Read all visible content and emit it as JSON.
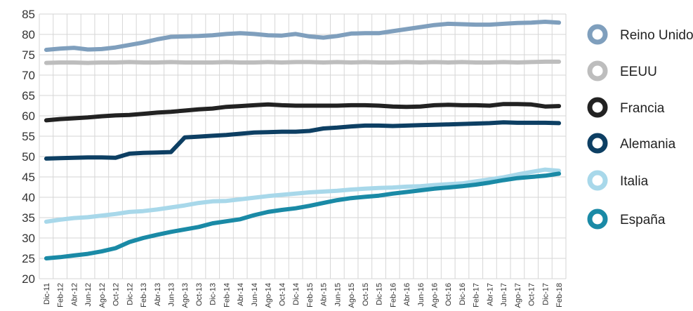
{
  "chart_data": {
    "type": "line",
    "title": "",
    "xlabel": "",
    "ylabel": "",
    "ylim": [
      20,
      85
    ],
    "yticks": [
      20,
      25,
      30,
      35,
      40,
      45,
      50,
      55,
      60,
      65,
      70,
      75,
      80,
      85
    ],
    "grid": true,
    "legend_position": "right",
    "categories": [
      "Dic-11",
      "Feb-12",
      "Abr-12",
      "Jun-12",
      "Ago-12",
      "Oct-12",
      "Dic-12",
      "Feb-13",
      "Abr-13",
      "Jun-13",
      "Ago-13",
      "Oct-13",
      "Dic-13",
      "Feb-14",
      "Abr-14",
      "Jun-14",
      "Ago-14",
      "Oct-14",
      "Dic-14",
      "Feb-15",
      "Abr-15",
      "Jun-15",
      "Ago-15",
      "Oct-15",
      "Dic-15",
      "Feb-16",
      "Abr-16",
      "Jun-16",
      "Ago-16",
      "Oct-16",
      "Dic-16",
      "Feb-17",
      "Abr-17",
      "Jun-17",
      "Ago-17",
      "Oct-17",
      "Dic-17",
      "Feb-18"
    ],
    "series": [
      {
        "name": "Reino Unido",
        "color": "#7f9fbd",
        "values": [
          76.2,
          76.5,
          76.7,
          76.3,
          76.4,
          76.8,
          77.4,
          78.0,
          78.8,
          79.4,
          79.5,
          79.6,
          79.8,
          80.1,
          80.3,
          80.1,
          79.8,
          79.7,
          80.1,
          79.5,
          79.2,
          79.6,
          80.2,
          80.3,
          80.3,
          80.8,
          81.3,
          81.8,
          82.3,
          82.6,
          82.5,
          82.4,
          82.4,
          82.6,
          82.8,
          82.9,
          83.1,
          82.9
        ]
      },
      {
        "name": "EEUU",
        "color": "#bdbdbd",
        "values": [
          73.0,
          73.1,
          73.1,
          73.0,
          73.1,
          73.1,
          73.2,
          73.1,
          73.1,
          73.2,
          73.1,
          73.1,
          73.1,
          73.2,
          73.1,
          73.1,
          73.2,
          73.1,
          73.2,
          73.2,
          73.1,
          73.2,
          73.1,
          73.2,
          73.1,
          73.1,
          73.2,
          73.1,
          73.2,
          73.1,
          73.2,
          73.1,
          73.1,
          73.2,
          73.1,
          73.2,
          73.3,
          73.3
        ]
      },
      {
        "name": "Francia",
        "color": "#222222",
        "values": [
          58.9,
          59.2,
          59.4,
          59.6,
          59.9,
          60.1,
          60.2,
          60.5,
          60.8,
          61.0,
          61.3,
          61.6,
          61.8,
          62.2,
          62.4,
          62.6,
          62.8,
          62.6,
          62.5,
          62.5,
          62.5,
          62.5,
          62.6,
          62.6,
          62.5,
          62.3,
          62.2,
          62.3,
          62.6,
          62.7,
          62.6,
          62.6,
          62.5,
          62.9,
          62.9,
          62.8,
          62.3,
          62.4
        ]
      },
      {
        "name": "Alemania",
        "color": "#0d3f63",
        "values": [
          49.5,
          49.6,
          49.7,
          49.8,
          49.8,
          49.7,
          50.7,
          50.9,
          51.0,
          51.1,
          54.7,
          54.9,
          55.1,
          55.3,
          55.6,
          55.9,
          56.0,
          56.1,
          56.1,
          56.3,
          56.9,
          57.1,
          57.4,
          57.6,
          57.6,
          57.5,
          57.6,
          57.7,
          57.8,
          57.9,
          58.0,
          58.1,
          58.2,
          58.4,
          58.3,
          58.3,
          58.3,
          58.2
        ]
      },
      {
        "name": "Italia",
        "color": "#a8d8ea",
        "values": [
          34.0,
          34.5,
          34.9,
          35.1,
          35.5,
          35.9,
          36.4,
          36.6,
          37.0,
          37.5,
          38.0,
          38.6,
          39.0,
          39.1,
          39.5,
          39.9,
          40.3,
          40.6,
          40.9,
          41.2,
          41.4,
          41.6,
          41.9,
          42.1,
          42.3,
          42.4,
          42.6,
          42.7,
          43.0,
          43.2,
          43.4,
          43.9,
          44.4,
          44.9,
          45.6,
          46.2,
          46.8,
          46.5
        ]
      },
      {
        "name": "España",
        "color": "#1a8aa6",
        "values": [
          25.0,
          25.3,
          25.7,
          26.1,
          26.7,
          27.5,
          29.0,
          30.0,
          30.8,
          31.5,
          32.1,
          32.7,
          33.6,
          34.1,
          34.6,
          35.6,
          36.4,
          36.9,
          37.3,
          37.9,
          38.6,
          39.3,
          39.8,
          40.1,
          40.4,
          40.9,
          41.3,
          41.7,
          42.1,
          42.4,
          42.7,
          43.1,
          43.6,
          44.2,
          44.7,
          45.0,
          45.3,
          45.8
        ]
      }
    ]
  }
}
